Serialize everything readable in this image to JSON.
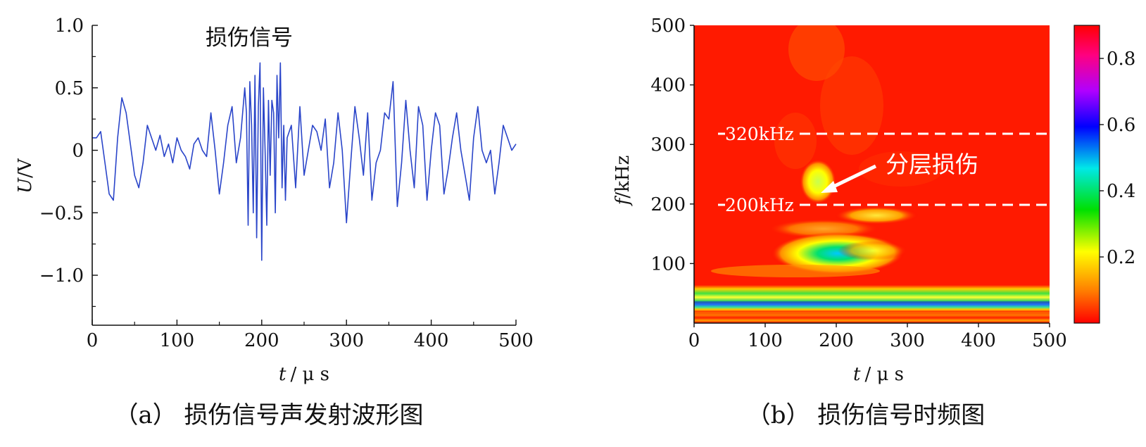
{
  "chart_data": [
    {
      "type": "line",
      "annotation": "损伤信号",
      "caption": "（a） 损伤信号声发射波形图",
      "xlabel_var": "t",
      "xlabel_unit": "/ μ s",
      "ylabel_var": "U",
      "ylabel_unit": "/V",
      "xlim": [
        0,
        500
      ],
      "ylim": [
        -1.4,
        1.0
      ],
      "x_ticks": [
        0,
        100,
        200,
        300,
        400,
        500
      ],
      "y_ticks": [
        1.0,
        0.5,
        0,
        -0.5,
        -1.0
      ],
      "y_tick_labels": [
        "1.0",
        "0.5",
        "0",
        "−0.5",
        "−1.0"
      ],
      "line_color": "#2a45c9",
      "x": [
        0,
        5,
        10,
        15,
        20,
        25,
        30,
        35,
        40,
        45,
        50,
        55,
        60,
        65,
        70,
        75,
        80,
        85,
        90,
        95,
        100,
        105,
        110,
        115,
        120,
        125,
        130,
        135,
        140,
        145,
        150,
        155,
        160,
        165,
        170,
        175,
        180,
        182,
        184,
        186,
        188,
        190,
        192,
        194,
        196,
        198,
        200,
        202,
        204,
        206,
        208,
        210,
        212,
        214,
        216,
        218,
        220,
        222,
        224,
        226,
        228,
        230,
        235,
        240,
        245,
        250,
        255,
        260,
        265,
        270,
        275,
        280,
        285,
        290,
        295,
        300,
        305,
        310,
        315,
        320,
        325,
        330,
        335,
        340,
        345,
        350,
        355,
        360,
        365,
        370,
        375,
        380,
        385,
        390,
        395,
        400,
        405,
        410,
        415,
        420,
        425,
        430,
        435,
        440,
        445,
        450,
        455,
        460,
        465,
        470,
        475,
        480,
        485,
        490,
        495,
        500
      ],
      "y": [
        0.1,
        0.1,
        0.15,
        -0.1,
        -0.35,
        -0.4,
        0.1,
        0.42,
        0.3,
        0.05,
        -0.2,
        -0.3,
        -0.1,
        0.2,
        0.1,
        0.0,
        0.12,
        -0.05,
        0.05,
        -0.1,
        0.1,
        0.0,
        -0.05,
        -0.15,
        0.05,
        0.1,
        0.0,
        -0.05,
        0.3,
        0.0,
        -0.35,
        -0.1,
        0.2,
        0.35,
        -0.1,
        0.1,
        0.5,
        0.3,
        -0.6,
        0.55,
        0.2,
        -0.5,
        0.6,
        -0.7,
        0.35,
        0.7,
        -0.88,
        0.5,
        0.0,
        -0.6,
        0.4,
        -0.2,
        0.4,
        0.3,
        -0.5,
        0.6,
        0.1,
        0.7,
        -0.3,
        0.2,
        -0.4,
        0.1,
        0.2,
        -0.3,
        0.35,
        -0.2,
        0.0,
        0.2,
        0.15,
        0.0,
        0.25,
        -0.3,
        -0.1,
        0.3,
        0.0,
        -0.58,
        -0.1,
        0.35,
        0.1,
        -0.2,
        0.3,
        -0.4,
        -0.1,
        0.0,
        0.3,
        0.25,
        0.55,
        -0.45,
        -0.1,
        0.4,
        0.0,
        -0.3,
        0.35,
        0.2,
        -0.4,
        0.0,
        0.3,
        0.2,
        -0.35,
        -0.15,
        0.1,
        0.3,
        0.0,
        -0.2,
        -0.4,
        0.1,
        0.35,
        0.0,
        -0.1,
        0.0,
        -0.35,
        -0.1,
        0.2,
        0.1,
        0.0,
        0.05
      ]
    },
    {
      "type": "heatmap",
      "caption": "（b） 损伤信号时频图",
      "xlabel_var": "t",
      "xlabel_unit": "/ μ s",
      "ylabel_var": "f",
      "ylabel_unit": "/kHz",
      "xlim": [
        0,
        500
      ],
      "ylim": [
        0,
        500
      ],
      "x_ticks": [
        0,
        100,
        200,
        300,
        400,
        500
      ],
      "y_ticks": [
        100,
        200,
        300,
        400,
        500
      ],
      "colorbar_ticks": [
        0.8,
        0.6,
        0.4,
        0.2
      ],
      "colorbar_range": [
        0,
        0.9
      ],
      "colorscale": [
        "#ff0000",
        "#ff7f00",
        "#ffff00",
        "#00e000",
        "#00e8e8",
        "#0000ff",
        "#b000ff",
        "#ff0080",
        "#ff0000"
      ],
      "reference_lines": [
        {
          "value": 320,
          "label": "320kHz"
        },
        {
          "value": 200,
          "label": "200kHz"
        }
      ],
      "annotation": "分层损伤",
      "annotation_target": {
        "t": 180,
        "f": 225
      }
    }
  ]
}
